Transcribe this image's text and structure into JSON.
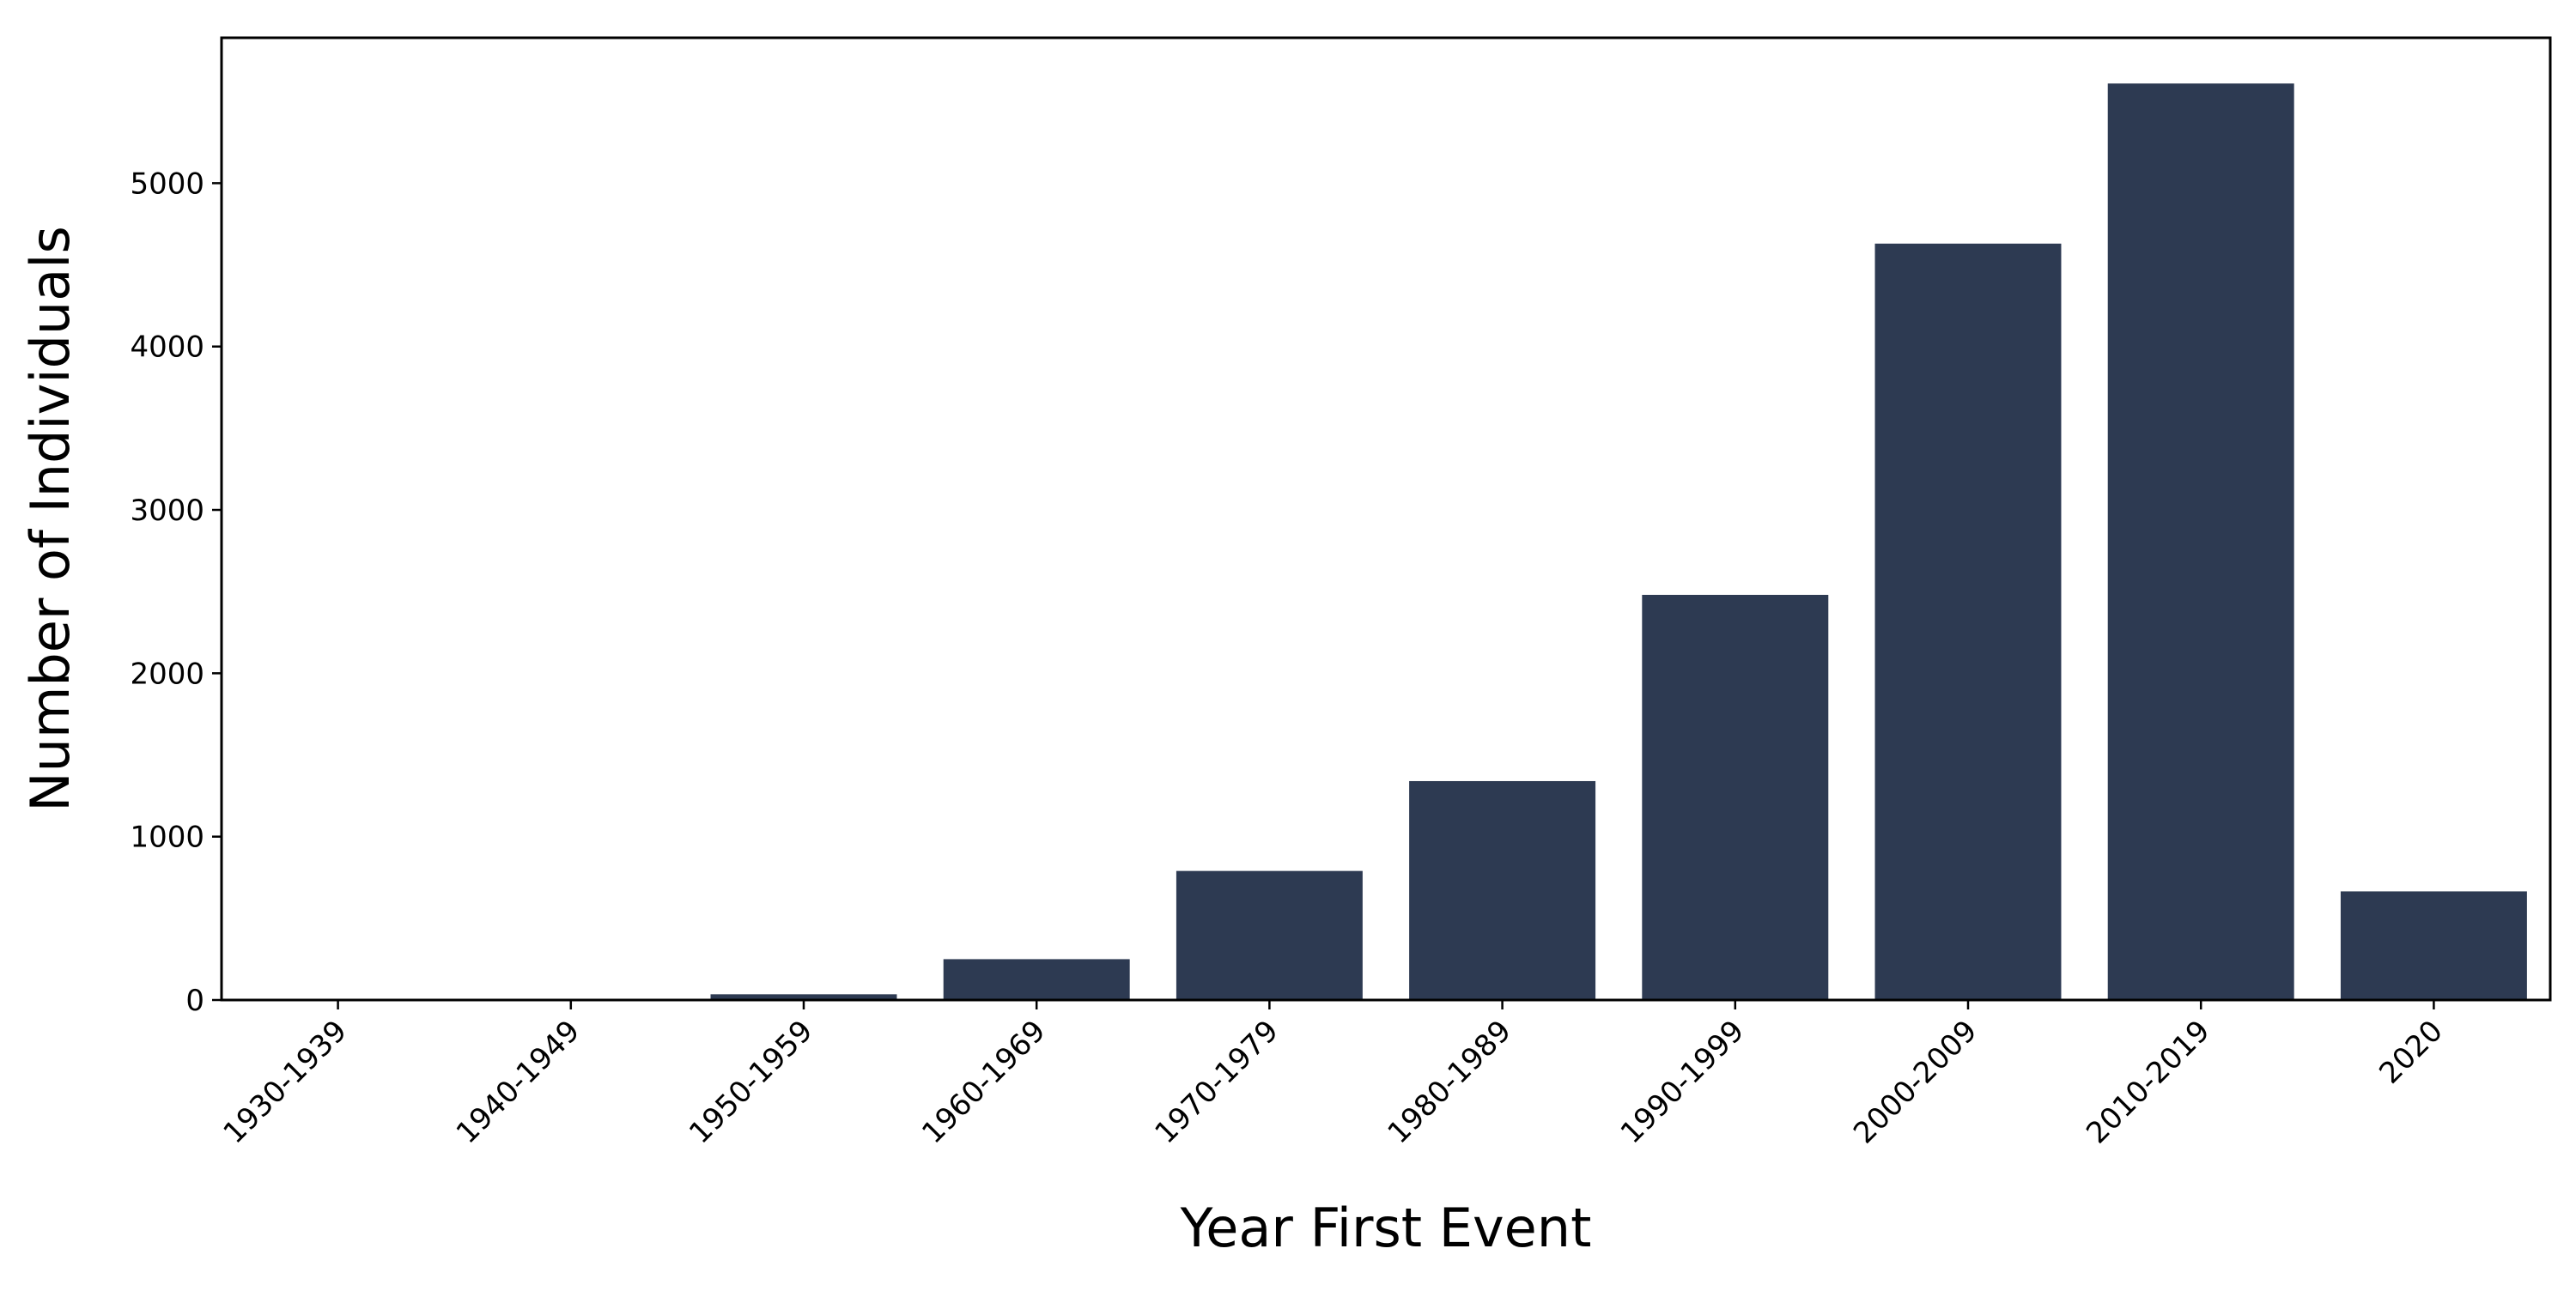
{
  "chart_data": {
    "type": "bar",
    "title": "",
    "xlabel": "Year First Event",
    "ylabel": "Number of Individuals",
    "categories": [
      "1930-1939",
      "1940-1949",
      "1950-1959",
      "1960-1969",
      "1970-1979",
      "1980-1989",
      "1990-1999",
      "2000-2009",
      "2010-2019",
      "2020"
    ],
    "values": [
      3,
      5,
      35,
      250,
      790,
      1340,
      2480,
      4630,
      5610,
      665
    ],
    "ylim": [
      0,
      5890
    ],
    "yticks": [
      0,
      1000,
      2000,
      3000,
      4000,
      5000
    ],
    "bar_color": "#2d3a52",
    "grid": false,
    "legend": "none"
  }
}
